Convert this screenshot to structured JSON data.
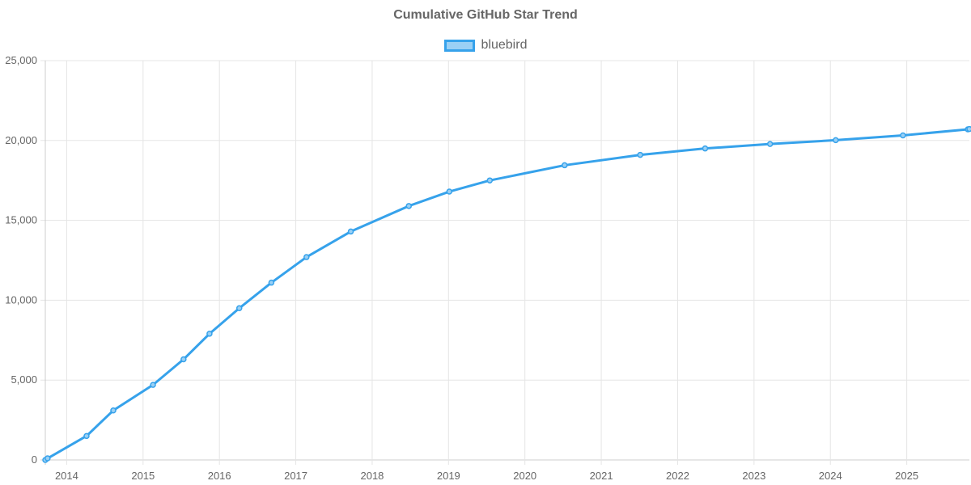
{
  "chart_data": {
    "type": "line",
    "title": "Cumulative GitHub Star Trend",
    "xlabel": "",
    "ylabel": "",
    "ylim": [
      0,
      25000
    ],
    "xlim": [
      2013.72,
      2025.82
    ],
    "y_ticks": [
      0,
      5000,
      10000,
      15000,
      20000,
      25000
    ],
    "y_tick_labels": [
      "0",
      "5,000",
      "10,000",
      "15,000",
      "20,000",
      "25,000"
    ],
    "x_ticks": [
      2014,
      2015,
      2016,
      2017,
      2018,
      2019,
      2020,
      2021,
      2022,
      2023,
      2024,
      2025
    ],
    "x_tick_labels": [
      "2014",
      "2015",
      "2016",
      "2017",
      "2018",
      "2019",
      "2020",
      "2021",
      "2022",
      "2023",
      "2024",
      "2025"
    ],
    "grid": true,
    "legend": "top-center",
    "series": [
      {
        "name": "bluebird",
        "color": "#36a2eb",
        "fill": "#9ad0f5",
        "x": [
          2013.72,
          2013.75,
          2014.26,
          2014.61,
          2015.13,
          2015.53,
          2015.87,
          2016.26,
          2016.68,
          2017.14,
          2017.72,
          2018.48,
          2019.01,
          2019.54,
          2020.52,
          2021.51,
          2022.36,
          2023.21,
          2024.07,
          2024.95,
          2025.8,
          2025.82
        ],
        "values": [
          0,
          100,
          1500,
          3100,
          4700,
          6300,
          7900,
          9500,
          11100,
          12700,
          14300,
          15900,
          16800,
          17500,
          18450,
          19100,
          19500,
          19780,
          20020,
          20320,
          20700,
          20720
        ]
      }
    ]
  }
}
